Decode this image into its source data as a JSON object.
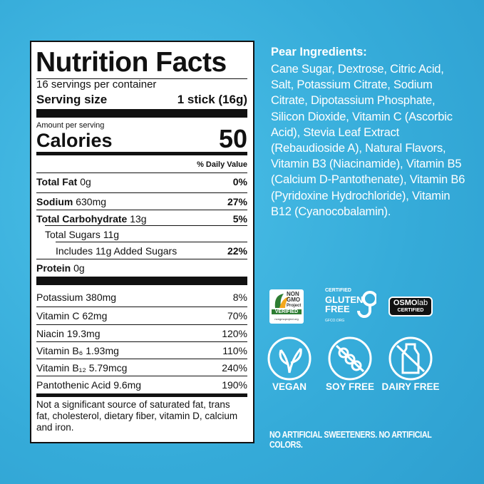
{
  "nutrition": {
    "title": "Nutrition Facts",
    "servings": "16 servings per container",
    "serving_size_label": "Serving size",
    "serving_size_value": "1 stick (16g)",
    "amount_per_serving": "Amount per serving",
    "calories_label": "Calories",
    "calories_value": "50",
    "daily_value_header": "% Daily Value",
    "rows": [
      {
        "name": "Total Fat",
        "amount": "0g",
        "dv": "0%"
      },
      {
        "name": "Sodium",
        "amount": "630mg",
        "dv": "27%"
      },
      {
        "name": "Total Carbohydrate",
        "amount": "13g",
        "dv": "5%"
      },
      {
        "name": "Total Sugars 11g"
      },
      {
        "name": "Includes 11g Added Sugars",
        "dv": "22%"
      },
      {
        "name": "Protein",
        "amount": "0g"
      }
    ],
    "micros": [
      {
        "name": "Potassium",
        "amount": "380mg",
        "dv": "8%"
      },
      {
        "name": "Vitamin C",
        "amount": "62mg",
        "dv": "70%"
      },
      {
        "name": "Niacin",
        "amount": "19.3mg",
        "dv": "120%"
      },
      {
        "name": "Vitamin B₆",
        "amount": "1.93mg",
        "dv": "110%"
      },
      {
        "name": "Vitamin B₁₂",
        "amount": "5.79mcg",
        "dv": "240%"
      },
      {
        "name": "Pantothenic Acid",
        "amount": "9.6mg",
        "dv": "190%"
      }
    ],
    "footnote": "Not a significant source of saturated fat, trans fat, cholesterol, dietary fiber, vitamin D, calcium and iron."
  },
  "ingredients": {
    "heading": "Pear Ingredients:",
    "text": "Cane Sugar, Dextrose, Citric Acid, Salt, Potassium Citrate, Sodium Citrate, Dipotassium Phosphate, Silicon Dioxide, Vitamin C (Ascorbic Acid), Stevia Leaf Extract (Rebaudioside A), Natural Flavors, Vitamin B3 (Niacinamide), Vitamin B5 (Calcium D-Pantothenate), Vitamin B6 (Pyridoxine Hydrochloride), Vitamin B12 (Cyanocobalamin)."
  },
  "badges": {
    "non_gmo": [
      "NON",
      "GMO",
      "Project",
      "VERIFIED",
      "nongmoproject.org"
    ],
    "gluten_free": [
      "CERTIFIED",
      "GLUTEN",
      "FREE",
      "GFCO.ORG"
    ],
    "osmolab": [
      "OSMO",
      "lab",
      "CERTIFIED"
    ]
  },
  "icons": [
    "VEGAN",
    "SOY FREE",
    "DAIRY FREE"
  ],
  "claim": "NO ARTIFICIAL SWEETENERS. NO ARTIFICIAL COLORS."
}
